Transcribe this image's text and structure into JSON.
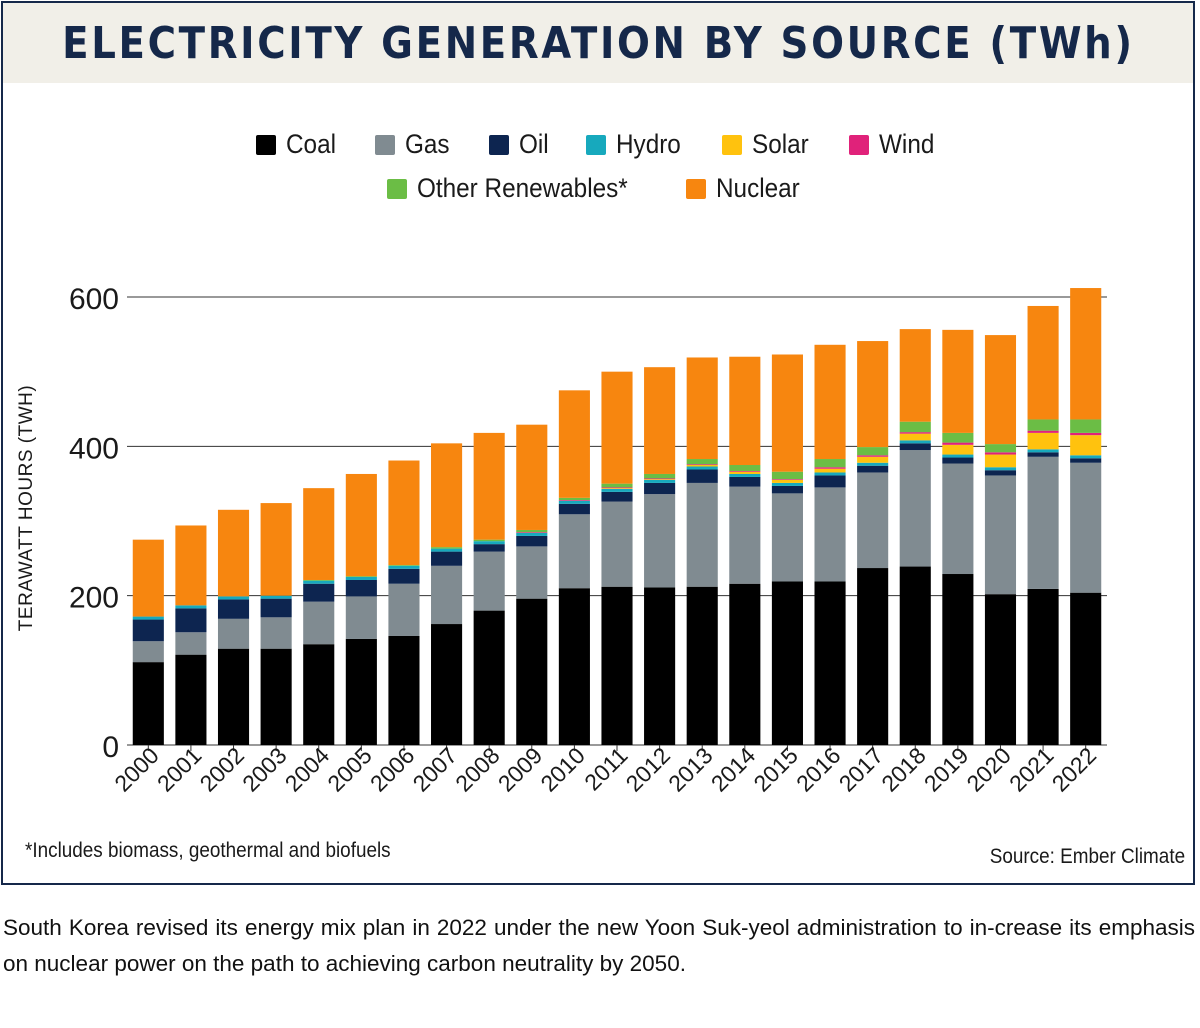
{
  "title": "ELECTRICITY GENERATION BY SOURCE (TWh)",
  "footnote": "*Includes biomass, geothermal and biofuels",
  "source": "Source: Ember Climate",
  "caption": "South Korea revised its energy mix plan in 2022 under the new Yoon Suk-yeol administration to in-crease its emphasis on nuclear power on the path to achieving carbon neutrality by 2050.",
  "colors": {
    "frame": "#15284a",
    "title": "#15284a",
    "title_band": "#f1efe8"
  },
  "chart_data": {
    "type": "bar",
    "stacked": true,
    "title": "ELECTRICITY GENERATION BY SOURCE (TWh)",
    "xlabel": "",
    "ylabel": "TERAWATT HOURS (TWH)",
    "ylim": [
      0,
      600
    ],
    "yticks": [
      "0",
      "200",
      "400",
      "600"
    ],
    "ytick_values": [
      0,
      200,
      400,
      600
    ],
    "grid": true,
    "legend_position": "top-center",
    "categories": [
      "2000",
      "2001",
      "2002",
      "2003",
      "2004",
      "2005",
      "2006",
      "2007",
      "2008",
      "2009",
      "2010",
      "2011",
      "2012",
      "2013",
      "2014",
      "2015",
      "2016",
      "2017",
      "2018",
      "2019",
      "2020",
      "2021",
      "2022"
    ],
    "series": [
      {
        "name": "Coal",
        "color": "#000000",
        "values": [
          111,
          121,
          129,
          129,
          135,
          142,
          146,
          162,
          180,
          196,
          210,
          212,
          211,
          212,
          216,
          219,
          219,
          237,
          239,
          229,
          202,
          209,
          204
        ]
      },
      {
        "name": "Gas",
        "color": "#808b91",
        "values": [
          28,
          30,
          40,
          42,
          57,
          57,
          70,
          78,
          79,
          70,
          99,
          114,
          125,
          139,
          130,
          118,
          126,
          128,
          156,
          148,
          159,
          177,
          174
        ]
      },
      {
        "name": "Oil",
        "color": "#0d2550",
        "values": [
          29,
          32,
          26,
          25,
          24,
          22,
          20,
          19,
          10,
          14,
          14,
          13,
          15,
          18,
          13,
          10,
          16,
          9,
          9,
          8,
          7,
          6,
          6
        ]
      },
      {
        "name": "Hydro",
        "color": "#17a9bd",
        "values": [
          4,
          4,
          4,
          4,
          4,
          4,
          4,
          4,
          4,
          4,
          4,
          4,
          4,
          4,
          4,
          4,
          4,
          4,
          4,
          4,
          4,
          4,
          4
        ]
      },
      {
        "name": "Solar",
        "color": "#ffc20e",
        "values": [
          0,
          0,
          0,
          0,
          0,
          0,
          0,
          0,
          0,
          0,
          0,
          1,
          1,
          2,
          3,
          4,
          5,
          8,
          9,
          13,
          17,
          22,
          27
        ]
      },
      {
        "name": "Wind",
        "color": "#e0227a",
        "values": [
          0,
          0,
          0,
          0,
          0,
          0,
          0,
          0,
          0,
          1,
          1,
          1,
          1,
          1,
          1,
          1,
          2,
          2,
          2,
          3,
          3,
          3,
          3
        ]
      },
      {
        "name": "Other Renewables*",
        "color": "#6bbd45",
        "values": [
          0,
          0,
          0,
          0,
          1,
          1,
          1,
          2,
          2,
          3,
          3,
          5,
          6,
          7,
          8,
          10,
          11,
          11,
          14,
          13,
          11,
          15,
          18
        ]
      },
      {
        "name": "Nuclear",
        "color": "#f7860f",
        "values": [
          103,
          107,
          116,
          124,
          123,
          137,
          140,
          139,
          143,
          141,
          144,
          150,
          143,
          136,
          145,
          157,
          153,
          142,
          124,
          138,
          146,
          152,
          176
        ]
      }
    ]
  }
}
